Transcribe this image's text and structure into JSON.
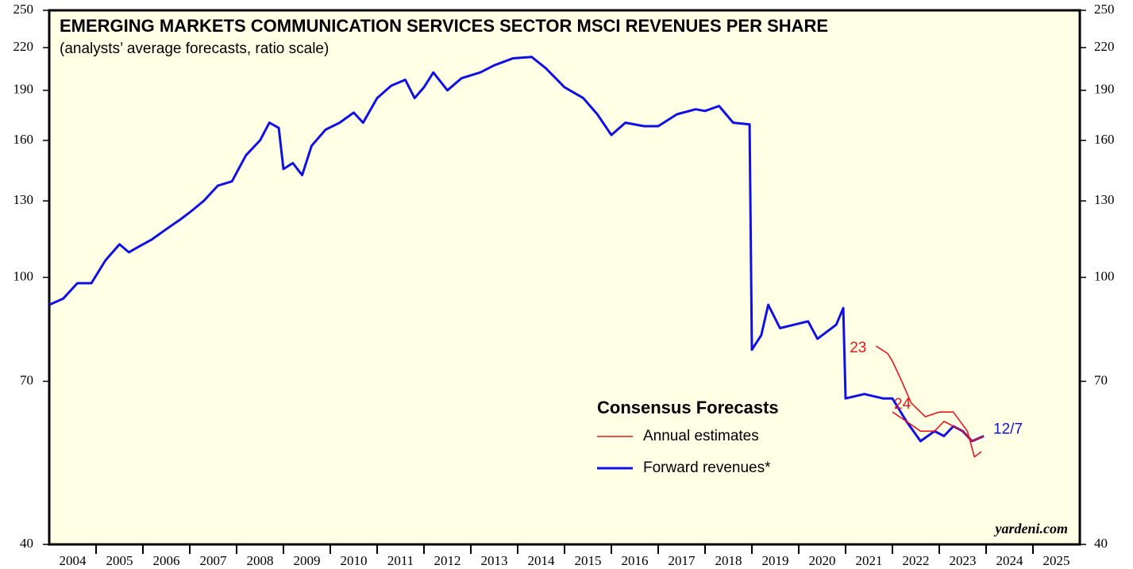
{
  "chart_data": {
    "type": "line",
    "title": "EMERGING MARKETS COMMUNICATION SERVICES SECTOR MSCI REVENUES PER SHARE",
    "subtitle": "(analysts’ average forecasts, ratio scale)",
    "source": "yardeni.com",
    "y_scale": "log",
    "ylim": [
      40,
      250
    ],
    "yticks": [
      40,
      70,
      100,
      130,
      160,
      190,
      220,
      250
    ],
    "xlim": [
      2004,
      2026
    ],
    "categories": [
      "2004",
      "2005",
      "2006",
      "2007",
      "2008",
      "2009",
      "2010",
      "2011",
      "2012",
      "2013",
      "2014",
      "2015",
      "2016",
      "2017",
      "2018",
      "2019",
      "2020",
      "2021",
      "2022",
      "2023",
      "2024",
      "2025"
    ],
    "legend": {
      "title": "Consensus Forecasts",
      "entries": [
        {
          "name": "Annual estimates",
          "color": "#e8141c"
        },
        {
          "name": "Forward revenues*",
          "color": "#1010e6"
        }
      ]
    },
    "series": [
      {
        "label": "12/7",
        "color": "#1010e6",
        "width": 3,
        "x": [
          2004.0,
          2004.3,
          2004.6,
          2004.9,
          2005.2,
          2005.5,
          2005.7,
          2005.9,
          2006.2,
          2006.5,
          2006.8,
          2007.0,
          2007.3,
          2007.6,
          2007.9,
          2008.2,
          2008.5,
          2008.7,
          2008.9,
          2009.0,
          2009.2,
          2009.4,
          2009.6,
          2009.9,
          2010.2,
          2010.5,
          2010.7,
          2011.0,
          2011.3,
          2011.6,
          2011.8,
          2012.0,
          2012.2,
          2012.5,
          2012.8,
          2013.2,
          2013.5,
          2013.9,
          2014.3,
          2014.6,
          2015.0,
          2015.4,
          2015.7,
          2016.0,
          2016.3,
          2016.7,
          2017.0,
          2017.4,
          2017.8,
          2018.0,
          2018.3,
          2018.6,
          2018.95,
          2019.0,
          2019.2,
          2019.35,
          2019.6,
          2019.9,
          2020.2,
          2020.4,
          2020.8,
          2020.95,
          2021.0,
          2021.4,
          2021.8,
          2022.0,
          2022.3,
          2022.6,
          2022.9,
          2023.1,
          2023.3,
          2023.5,
          2023.7,
          2023.95
        ],
        "values": [
          91,
          93,
          98,
          98,
          106,
          112,
          109,
          111,
          114,
          118,
          122,
          125,
          130,
          137,
          139,
          152,
          160,
          170,
          167,
          145,
          148,
          142,
          157,
          166,
          170,
          176,
          170,
          185,
          193,
          197,
          185,
          192,
          202,
          190,
          198,
          202,
          207,
          212,
          213,
          205,
          192,
          185,
          175,
          163,
          170,
          168,
          168,
          175,
          178,
          177,
          180,
          170,
          169,
          78,
          82,
          91,
          84,
          85,
          86,
          81,
          85,
          90,
          66,
          67,
          66,
          66,
          61,
          57,
          59,
          58,
          60,
          59,
          57,
          58
        ]
      },
      {
        "label": "23",
        "color": "#e8141c",
        "width": 1.6,
        "x": [
          2021.65,
          2021.9,
          2022.0,
          2022.2,
          2022.4,
          2022.7,
          2023.0,
          2023.3,
          2023.6,
          2023.75,
          2023.9
        ],
        "values": [
          79,
          77,
          75,
          70,
          65,
          62,
          63,
          63,
          59,
          54,
          55
        ]
      },
      {
        "label": "24",
        "color": "#e8141c",
        "width": 1.6,
        "x": [
          2022.0,
          2022.3,
          2022.6,
          2022.9,
          2023.1,
          2023.3,
          2023.5,
          2023.7,
          2023.95
        ],
        "values": [
          63,
          61,
          59,
          59,
          61,
          60,
          59,
          57,
          58
        ]
      }
    ]
  }
}
